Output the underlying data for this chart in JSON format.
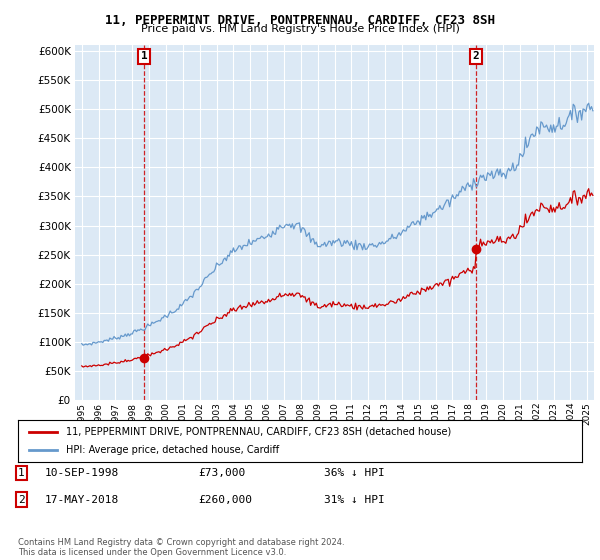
{
  "title": "11, PEPPERMINT DRIVE, PONTPRENNAU, CARDIFF, CF23 8SH",
  "subtitle": "Price paid vs. HM Land Registry's House Price Index (HPI)",
  "yticks": [
    0,
    50000,
    100000,
    150000,
    200000,
    250000,
    300000,
    350000,
    400000,
    450000,
    500000,
    550000,
    600000
  ],
  "ylim": [
    0,
    610000
  ],
  "xlim_left": 1994.6,
  "xlim_right": 2025.4,
  "sale1_date": 1998.7,
  "sale1_price": 73000,
  "sale2_date": 2018.38,
  "sale2_price": 260000,
  "legend_line1": "11, PEPPERMINT DRIVE, PONTPRENNAU, CARDIFF, CF23 8SH (detached house)",
  "legend_line2": "HPI: Average price, detached house, Cardiff",
  "house_color": "#cc0000",
  "hpi_color": "#6699cc",
  "bg_color": "#ffffff",
  "plot_bg_color": "#dce9f5",
  "grid_color": "#ffffff"
}
